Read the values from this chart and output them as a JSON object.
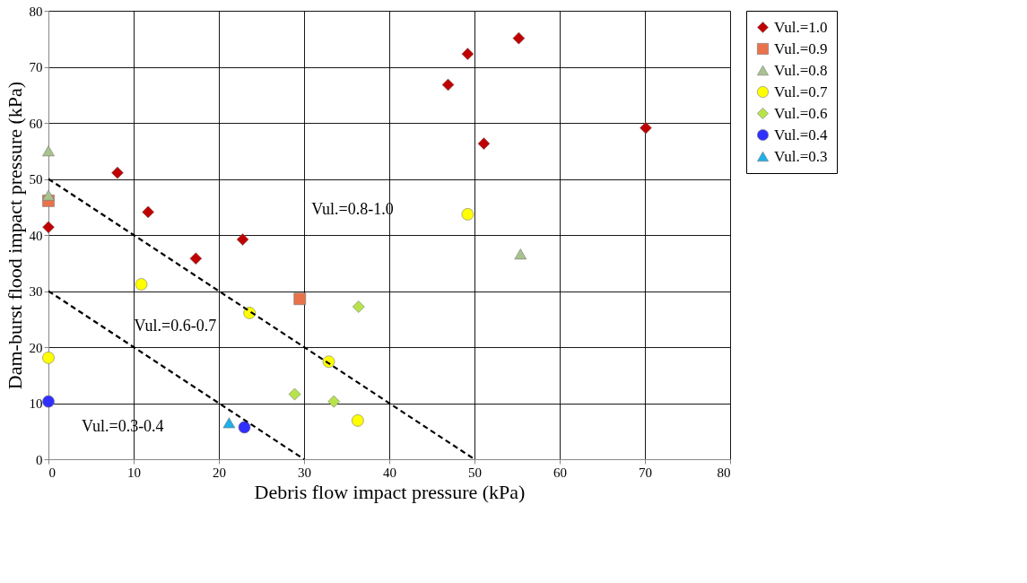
{
  "chart_data": {
    "type": "scatter",
    "xlabel": "Debris flow impact pressure (kPa)",
    "ylabel": "Dam-burst flood impact pressure (kPa)",
    "xlim": [
      0,
      80
    ],
    "xticks": [
      0,
      10,
      20,
      30,
      40,
      50,
      60,
      70,
      80
    ],
    "ylim": [
      0,
      80
    ],
    "yticks": [
      0,
      10,
      20,
      30,
      40,
      50,
      60,
      70,
      80
    ],
    "grid": true,
    "legend": "right",
    "series": [
      {
        "name": "Vul.=1.0",
        "color": "#c00000",
        "marker": "diamond",
        "x": [
          49.2,
          55.2,
          46.9,
          51.1,
          70.1,
          8.1,
          11.7,
          0,
          17.3,
          22.8
        ],
        "values": [
          72.3,
          75.1,
          66.8,
          56.3,
          59.1,
          51.1,
          44.1,
          41.4,
          35.8,
          39.2
        ]
      },
      {
        "name": "Vul.=0.9",
        "color": "#e8734a",
        "marker": "square",
        "x": [
          0,
          29.5
        ],
        "values": [
          46.1,
          28.6
        ]
      },
      {
        "name": "Vul.=0.8",
        "color": "#a9c38f",
        "marker": "triangle",
        "x": [
          0,
          0,
          55.4
        ],
        "values": [
          55.0,
          47.1,
          36.6
        ]
      },
      {
        "name": "Vul.=0.7",
        "color": "#ffff00",
        "marker": "circle",
        "x": [
          49.2,
          10.9,
          23.6,
          0,
          32.9,
          36.3
        ],
        "values": [
          43.7,
          31.2,
          26.1,
          18.1,
          17.4,
          6.9
        ]
      },
      {
        "name": "Vul.=0.6",
        "color": "#b7e34a",
        "marker": "diamond",
        "x": [
          36.4,
          28.9,
          33.5
        ],
        "values": [
          27.2,
          11.6,
          10.3
        ]
      },
      {
        "name": "Vul.=0.4",
        "color": "#2f2fff",
        "marker": "circle",
        "x": [
          0,
          23.0
        ],
        "values": [
          10.3,
          5.7
        ]
      },
      {
        "name": "Vul.=0.3",
        "color": "#1eb0e8",
        "marker": "triangle",
        "x": [
          21.2
        ],
        "values": [
          6.5
        ]
      },
      {
        "type": "line",
        "color": "#000000",
        "line_style": "dashed",
        "x": [
          0,
          50
        ],
        "values": [
          50,
          0
        ]
      },
      {
        "type": "line",
        "color": "#000000",
        "line_style": "dashed",
        "x": [
          0,
          30
        ],
        "values": [
          30,
          0
        ]
      }
    ],
    "annotations": [
      "Vul.=0.8-1.0",
      "Vul.=0.6-0.7",
      "Vul.=0.3-0.4"
    ]
  }
}
